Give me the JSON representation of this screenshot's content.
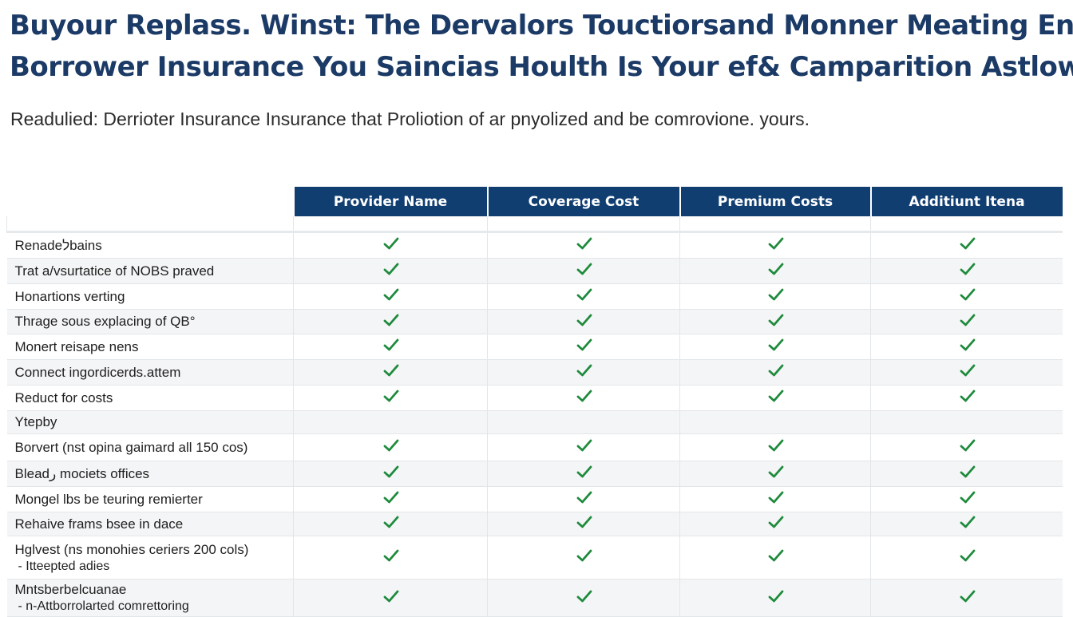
{
  "heading": {
    "line1": "Buyour Replass. Winst: The Dervalors Touctiorsand Monner Meating Enrie",
    "line2": "Borrower Insurance  You Saincias Houlth Is Your ef& Camparition Astlowng"
  },
  "subtitle": "Readulied: Derrioter Insurance Insurance that Proliotion of ar pnyolized and be comrovione. yours.",
  "table": {
    "columns": [
      "Provider Name",
      "Coverage Cost",
      "Premium Costs",
      "Additiunt Itena"
    ],
    "check_color": "#1e8a3c",
    "header_color": "#113e71",
    "rows": [
      {
        "label": "Renadeלbains",
        "checks": true
      },
      {
        "label": "Trat a/vsurtatice of NOBS praved",
        "checks": true
      },
      {
        "label": "Honartions verting",
        "checks": true
      },
      {
        "label": "Thrage sous explacing of QB°",
        "checks": true
      },
      {
        "label": "Monert reisape nens",
        "checks": true
      },
      {
        "label": "Connect ingordicerds.attem",
        "checks": true
      },
      {
        "label": "Reduct for costs",
        "checks": true
      },
      {
        "label": "Ytepby",
        "checks": false
      },
      {
        "label": "Borvert (nst opina gaimard all 150 cos)",
        "checks": true
      },
      {
        "label": "Bleadر mociets offices",
        "checks": true
      },
      {
        "label": "Mongel lbs be teuring remierter",
        "checks": true
      },
      {
        "label": "Rehaive frams bsee in dace",
        "checks": true
      },
      {
        "label": "Hglvest (ns monohies ceriers 200 cols)",
        "sub": "- Itteepted adies",
        "checks": true
      },
      {
        "label": "Mntsberbelcuanae",
        "sub": "- n-Attborrolarted comrettoring",
        "checks": true
      }
    ]
  }
}
